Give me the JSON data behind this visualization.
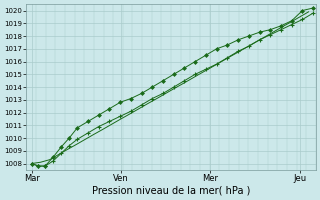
{
  "xlabel": "Pression niveau de la mer( hPa )",
  "bg_color": "#cce8ea",
  "grid_color": "#aacccc",
  "line_color": "#1a6b1a",
  "ylim": [
    1007.5,
    1020.5
  ],
  "yticks": [
    1008,
    1009,
    1010,
    1011,
    1012,
    1013,
    1014,
    1015,
    1016,
    1017,
    1018,
    1019,
    1020
  ],
  "xtick_labels": [
    "Mar",
    "Ven",
    "Mer",
    "Jeu"
  ],
  "xtick_positions": [
    0.0,
    0.333,
    0.667,
    1.0
  ],
  "xlim": [
    -0.02,
    1.06
  ],
  "series1_x": [
    0.0,
    0.025,
    0.05,
    0.08,
    0.11,
    0.14,
    0.17,
    0.21,
    0.25,
    0.29,
    0.33,
    0.37,
    0.41,
    0.45,
    0.49,
    0.53,
    0.57,
    0.61,
    0.65,
    0.69,
    0.73,
    0.77,
    0.81,
    0.85,
    0.89,
    0.93,
    0.97,
    1.01,
    1.05
  ],
  "series1_y": [
    1008.0,
    1007.8,
    1007.8,
    1008.2,
    1008.8,
    1009.4,
    1009.9,
    1010.4,
    1010.9,
    1011.3,
    1011.7,
    1012.1,
    1012.6,
    1013.1,
    1013.5,
    1014.0,
    1014.5,
    1015.0,
    1015.4,
    1015.8,
    1016.3,
    1016.8,
    1017.2,
    1017.7,
    1018.1,
    1018.5,
    1018.9,
    1019.3,
    1019.8
  ],
  "series2_x": [
    0.0,
    0.025,
    0.05,
    0.08,
    0.11,
    0.14,
    0.17,
    0.21,
    0.25,
    0.29,
    0.33,
    0.37,
    0.41,
    0.45,
    0.49,
    0.53,
    0.57,
    0.61,
    0.65,
    0.69,
    0.73,
    0.77,
    0.81,
    0.85,
    0.89,
    0.93,
    0.97,
    1.01,
    1.05
  ],
  "series2_y": [
    1008.0,
    1007.8,
    1007.8,
    1008.5,
    1009.3,
    1010.0,
    1010.8,
    1011.3,
    1011.8,
    1012.3,
    1012.8,
    1013.1,
    1013.5,
    1014.0,
    1014.5,
    1015.0,
    1015.5,
    1016.0,
    1016.5,
    1017.0,
    1017.3,
    1017.7,
    1018.0,
    1018.3,
    1018.5,
    1018.8,
    1019.2,
    1020.0,
    1020.2
  ],
  "series3_x": [
    0.0,
    0.033,
    0.067,
    0.1,
    0.133,
    0.167,
    0.2,
    0.233,
    0.267,
    0.3,
    0.333,
    0.367,
    0.4,
    0.433,
    0.467,
    0.5,
    0.533,
    0.567,
    0.6,
    0.633,
    0.667,
    0.7,
    0.733,
    0.767,
    0.8,
    0.833,
    0.867,
    0.9,
    0.933,
    0.967,
    1.0,
    1.033
  ],
  "series3_y": [
    1008.0,
    1008.1,
    1008.3,
    1008.7,
    1009.1,
    1009.5,
    1009.9,
    1010.3,
    1010.7,
    1011.1,
    1011.5,
    1011.9,
    1012.3,
    1012.7,
    1013.1,
    1013.5,
    1013.9,
    1014.3,
    1014.7,
    1015.1,
    1015.5,
    1015.9,
    1016.3,
    1016.7,
    1017.1,
    1017.5,
    1017.9,
    1018.3,
    1018.7,
    1019.1,
    1019.5,
    1019.9
  ]
}
